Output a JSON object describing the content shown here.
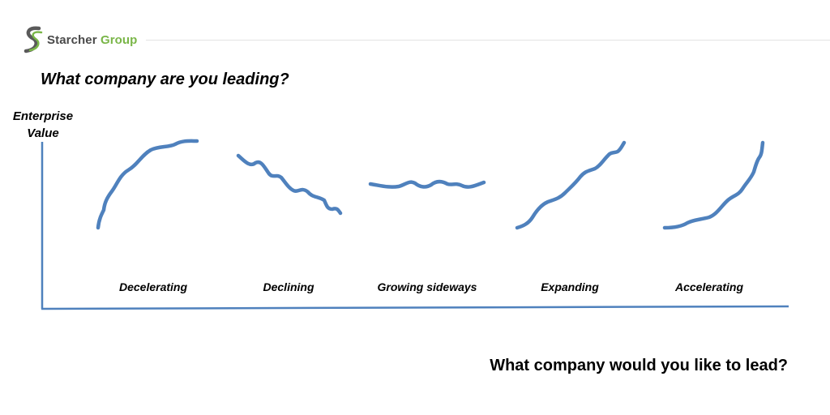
{
  "brand": {
    "name_part1": "Starcher",
    "name_part2": "Group",
    "colors": {
      "primary": "#4a4a4a",
      "accent": "#7ab648"
    },
    "icon": "stylized-s-logo-icon"
  },
  "question_current": "What company are you leading?",
  "y_axis": {
    "label_line1": "Enterprise",
    "label_line2": "Value"
  },
  "stages": [
    {
      "label": "Decelerating",
      "curve": "concave-rising"
    },
    {
      "label": "Declining",
      "curve": "wavy-falling"
    },
    {
      "label": "Growing sideways",
      "curve": "wavy-flat"
    },
    {
      "label": "Expanding",
      "curve": "linear-rising"
    },
    {
      "label": "Accelerating",
      "curve": "convex-rising"
    }
  ],
  "question_future": "What company would you like to lead?",
  "style": {
    "curve_color": "#4f81bd",
    "axis_color": "#4f81bd"
  }
}
